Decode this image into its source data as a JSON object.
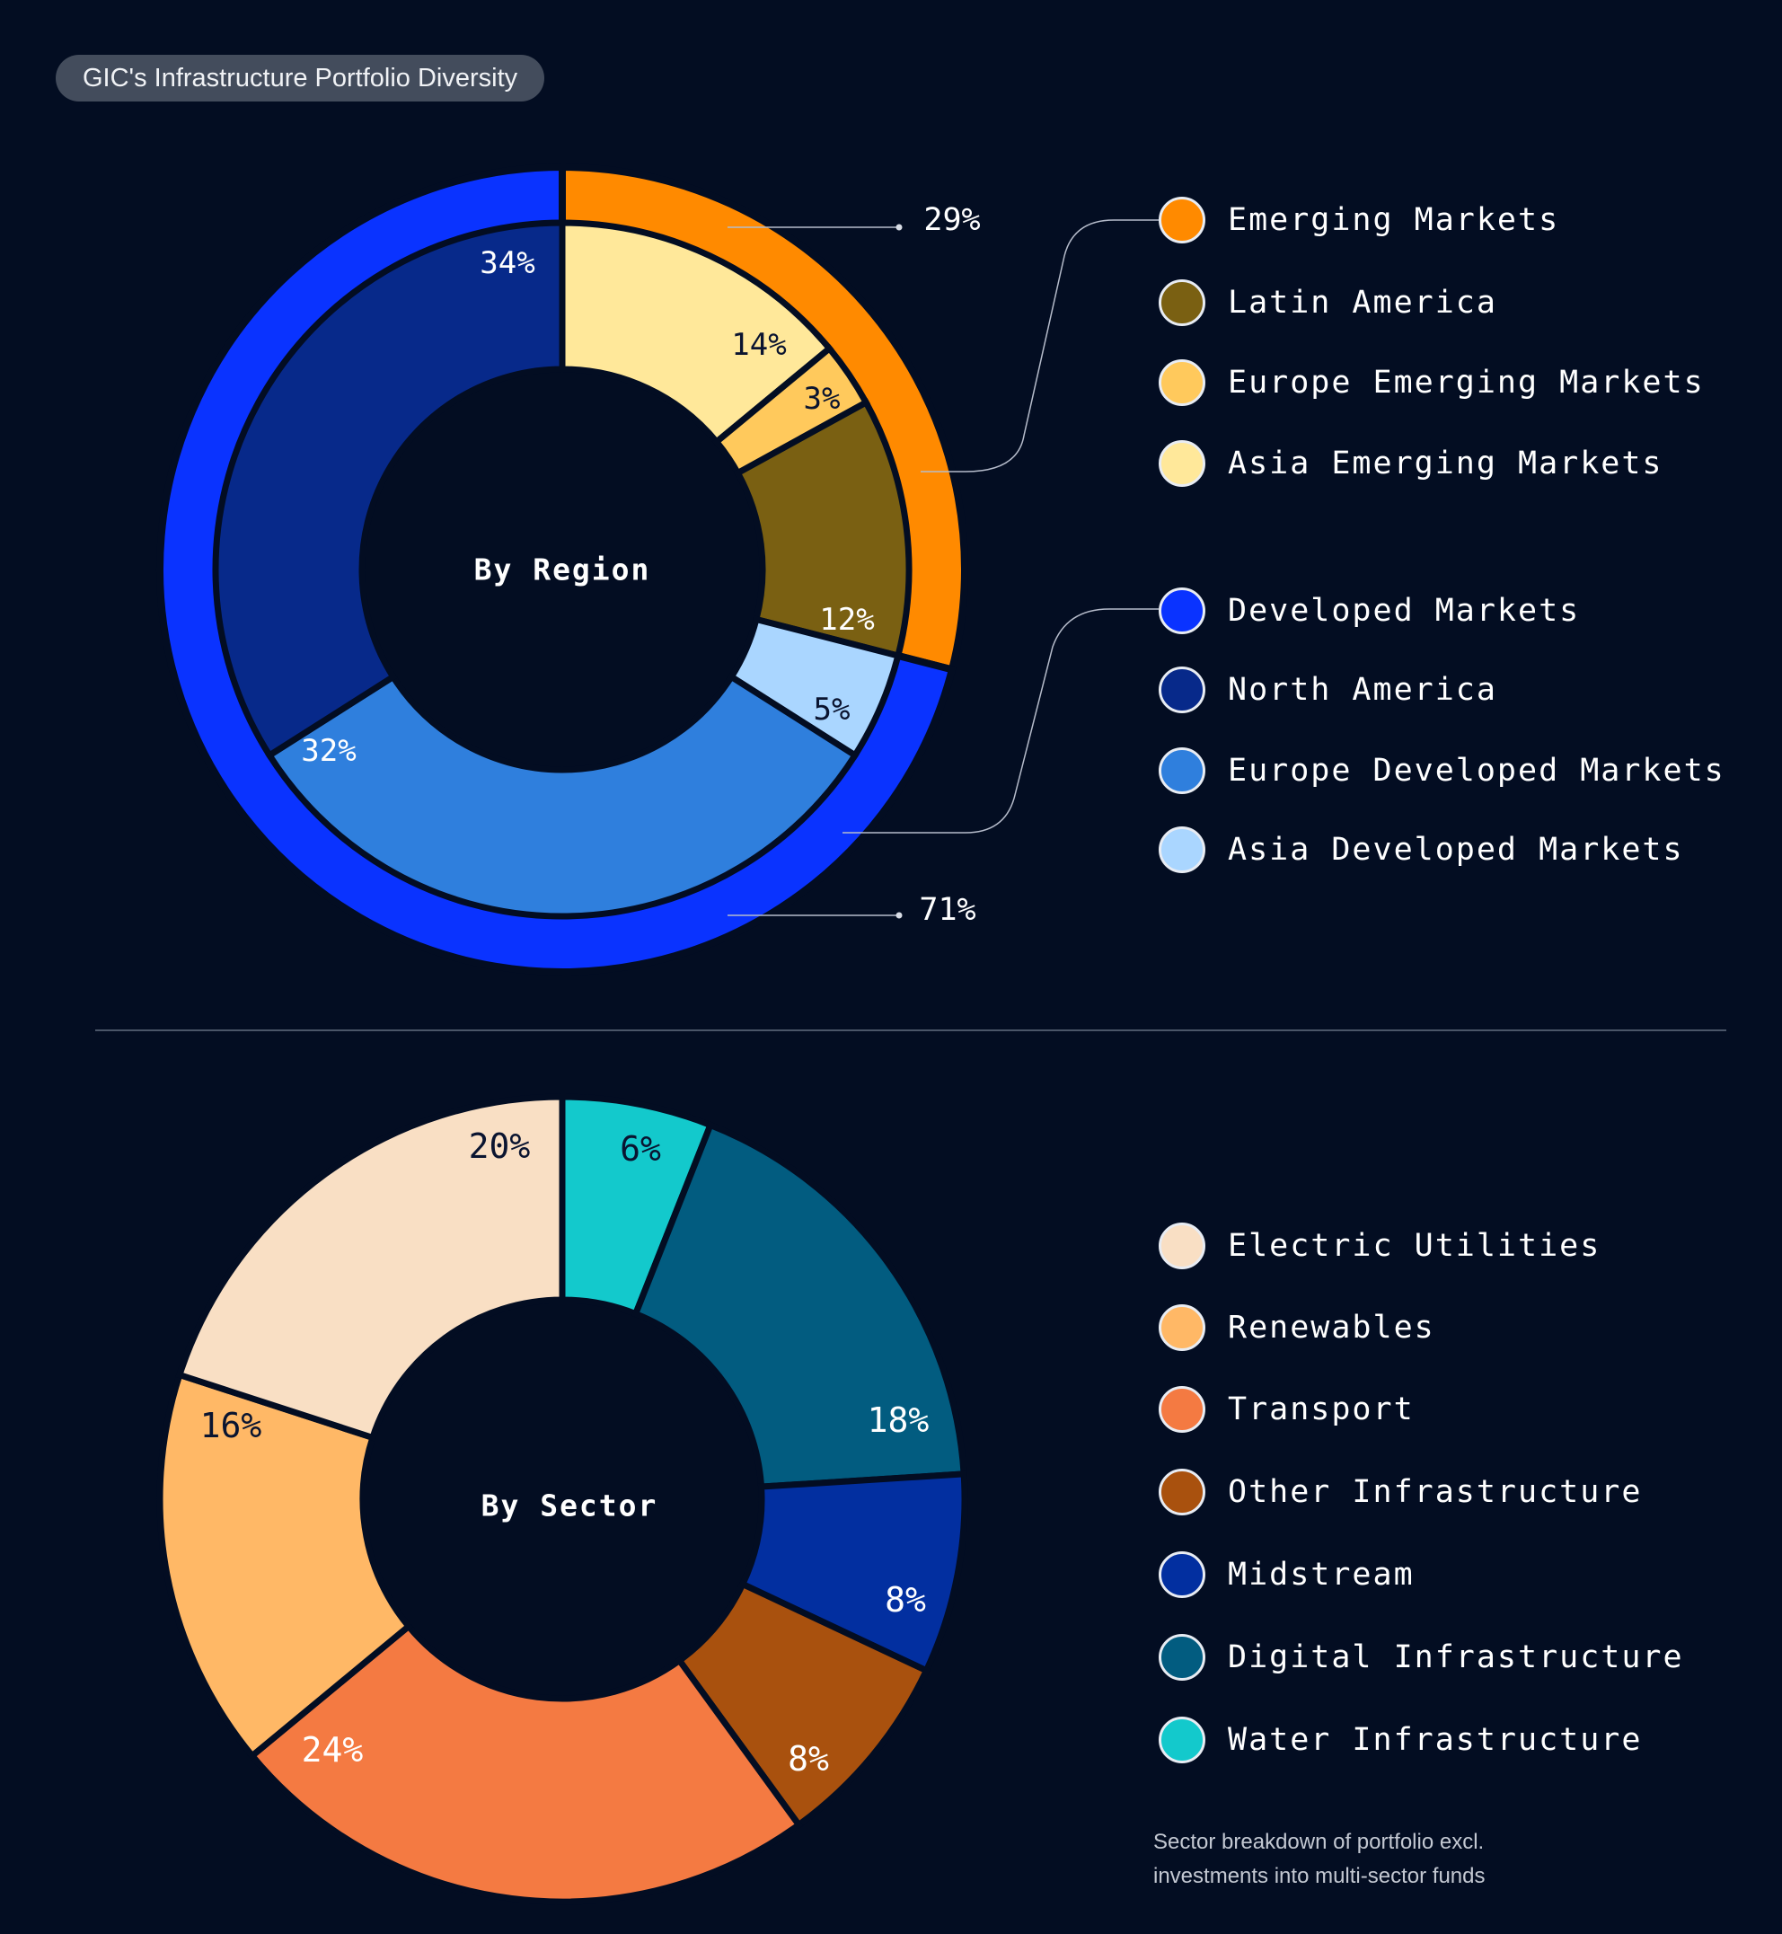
{
  "title": "GIC's Infrastructure Portfolio Diversity",
  "note": [
    "Sector breakdown of portfolio excl.",
    "investments into multi-sector funds"
  ],
  "chart_data": [
    {
      "type": "pie",
      "center_label": "By Region",
      "outer_series": [
        {
          "name": "Emerging Markets",
          "value": 29,
          "label": "29%",
          "color": "#ff8a00"
        },
        {
          "name": "Developed Markets",
          "value": 71,
          "label": "71%",
          "color": "#0a33ff"
        }
      ],
      "series": [
        {
          "name": "Asia Emerging Markets",
          "value": 14,
          "label": "14%",
          "color": "#ffe89a"
        },
        {
          "name": "Europe Emerging Markets",
          "value": 3,
          "label": "3%",
          "color": "#ffc95c"
        },
        {
          "name": "Latin America",
          "value": 12,
          "label": "12%",
          "color": "#7a6012"
        },
        {
          "name": "Asia Developed Markets",
          "value": 5,
          "label": "5%",
          "color": "#aad6ff"
        },
        {
          "name": "Europe Developed Markets",
          "value": 32,
          "label": "32%",
          "color": "#2f7fdd"
        },
        {
          "name": "North America",
          "value": 34,
          "label": "34%",
          "color": "#07298a"
        }
      ],
      "legend": [
        {
          "name": "Emerging Markets",
          "color": "#ff8a00"
        },
        {
          "name": "Latin America",
          "color": "#7a6012"
        },
        {
          "name": "Europe Emerging Markets",
          "color": "#ffc95c"
        },
        {
          "name": "Asia Emerging Markets",
          "color": "#ffe89a"
        },
        {
          "name": "Developed Markets",
          "color": "#0a33ff"
        },
        {
          "name": "North America",
          "color": "#07298a"
        },
        {
          "name": "Europe Developed Markets",
          "color": "#2f7fdd"
        },
        {
          "name": "Asia Developed Markets",
          "color": "#aad6ff"
        }
      ]
    },
    {
      "type": "pie",
      "center_label": "By Sector",
      "series": [
        {
          "name": "Water Infrastructure",
          "value": 6,
          "label": "6%",
          "color": "#13c9cc"
        },
        {
          "name": "Digital Infrastructure",
          "value": 18,
          "label": "18%",
          "color": "#025c80"
        },
        {
          "name": "Midstream",
          "value": 8,
          "label": "8%",
          "color": "#022fa0"
        },
        {
          "name": "Other Infrastructure",
          "value": 8,
          "label": "8%",
          "color": "#a9510e"
        },
        {
          "name": "Transport",
          "value": 24,
          "label": "24%",
          "color": "#f47a42"
        },
        {
          "name": "Renewables",
          "value": 16,
          "label": "16%",
          "color": "#ffb866"
        },
        {
          "name": "Electric Utilities",
          "value": 20,
          "label": "20%",
          "color": "#f9dfc4"
        }
      ],
      "legend": [
        {
          "name": "Electric Utilities",
          "color": "#f9dfc4"
        },
        {
          "name": "Renewables",
          "color": "#ffb866"
        },
        {
          "name": "Transport",
          "color": "#f47a42"
        },
        {
          "name": "Other Infrastructure",
          "color": "#a9510e"
        },
        {
          "name": "Midstream",
          "color": "#022fa0"
        },
        {
          "name": "Digital Infrastructure",
          "color": "#025c80"
        },
        {
          "name": "Water Infrastructure",
          "color": "#13c9cc"
        }
      ]
    }
  ]
}
